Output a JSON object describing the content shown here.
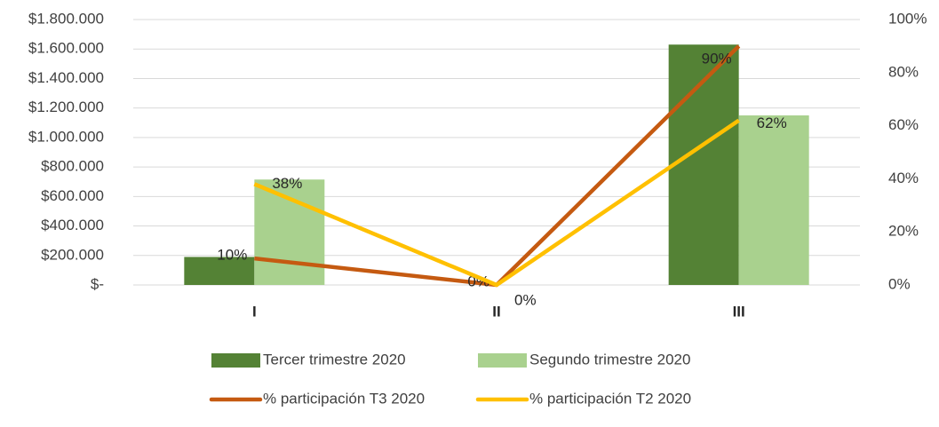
{
  "chart_data": {
    "type": "bar_line",
    "categories": [
      "I",
      "II",
      "III"
    ],
    "series": [
      {
        "name": "Tercer trimestre 2020",
        "type": "bar",
        "color": "#548235",
        "values": [
          190000,
          0,
          1630000
        ]
      },
      {
        "name": "Segundo trimestre 2020",
        "type": "bar",
        "color": "#a9d18e",
        "values": [
          715000,
          0,
          1150000
        ]
      },
      {
        "name": "% participación T3 2020",
        "type": "line",
        "axis": "y2",
        "color": "#c55a11",
        "values": [
          10,
          0,
          90
        ],
        "value_labels": [
          "10%",
          "0%",
          "90%"
        ]
      },
      {
        "name": "% participación T2 2020",
        "type": "line",
        "axis": "y2",
        "color": "#ffc000",
        "values": [
          38,
          0,
          62
        ],
        "value_labels": [
          "38%",
          "0%",
          "62%"
        ]
      }
    ],
    "ylim": [
      0,
      1800000
    ],
    "yticks": [
      {
        "value": 0,
        "label": "$-"
      },
      {
        "value": 200000,
        "label": "$200.000"
      },
      {
        "value": 400000,
        "label": "$400.000"
      },
      {
        "value": 600000,
        "label": "$600.000"
      },
      {
        "value": 800000,
        "label": "$800.000"
      },
      {
        "value": 1000000,
        "label": "$1.000.000"
      },
      {
        "value": 1200000,
        "label": "$1.200.000"
      },
      {
        "value": 1400000,
        "label": "$1.400.000"
      },
      {
        "value": 1600000,
        "label": "$1.600.000"
      },
      {
        "value": 1800000,
        "label": "$1.800.000"
      }
    ],
    "y2lim": [
      0,
      100
    ],
    "y2ticks": [
      {
        "value": 0,
        "label": "0%"
      },
      {
        "value": 20,
        "label": "20%"
      },
      {
        "value": 40,
        "label": "40%"
      },
      {
        "value": 60,
        "label": "60%"
      },
      {
        "value": 80,
        "label": "80%"
      },
      {
        "value": 100,
        "label": "100%"
      }
    ],
    "grid": true,
    "legend": "bottom"
  }
}
